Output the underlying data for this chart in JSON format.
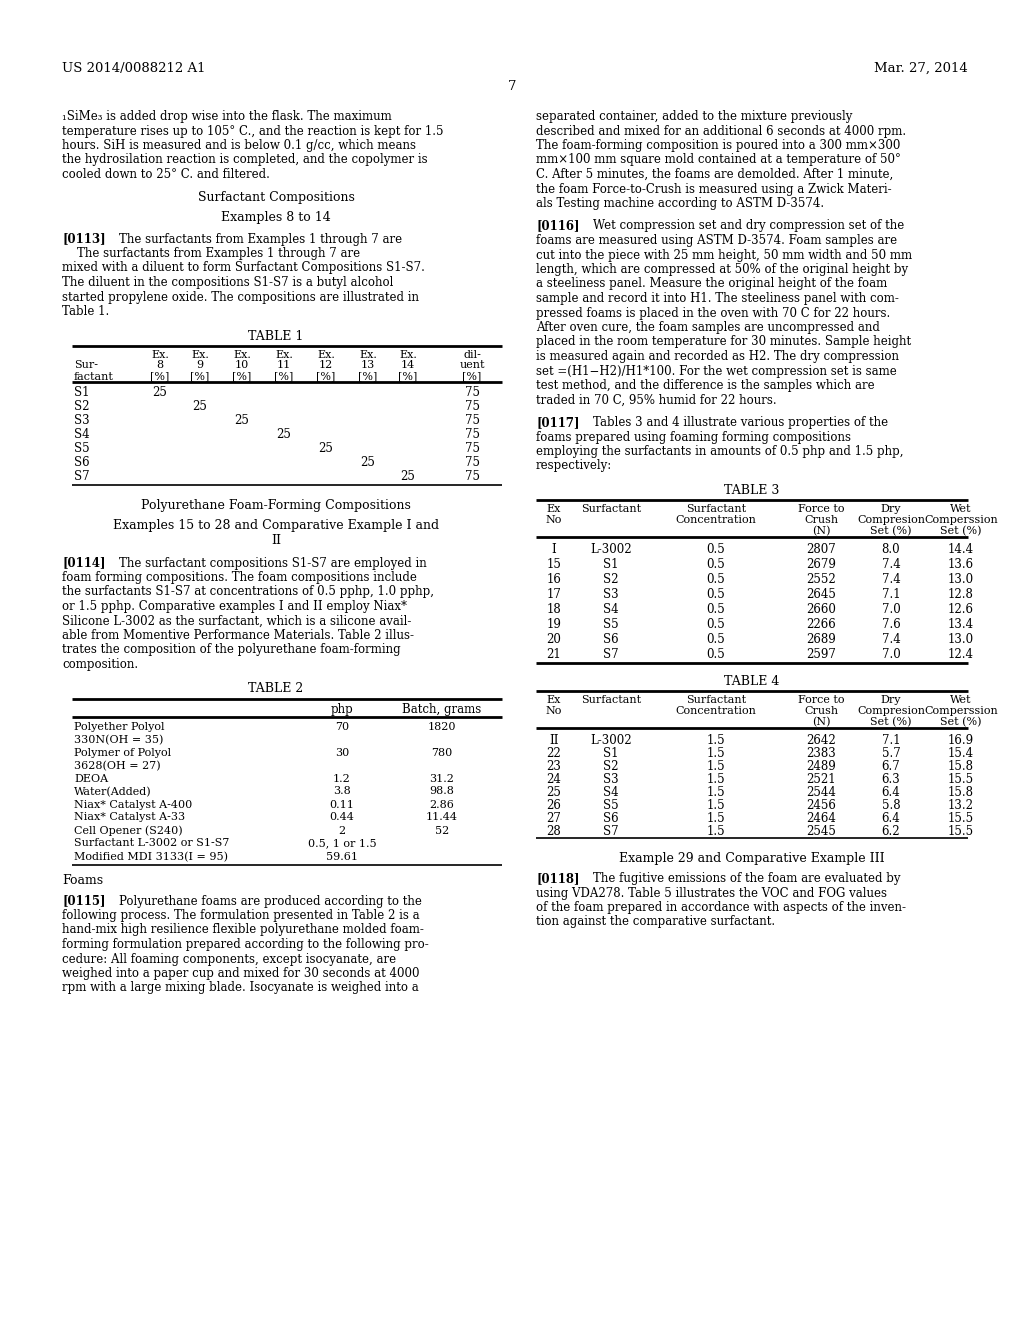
{
  "bg_color": "#ffffff",
  "header_left": "US 2014/0088212 A1",
  "header_right": "Mar. 27, 2014",
  "page_number": "7",
  "table1": {
    "rows": [
      [
        "S1",
        "25",
        "",
        "",
        "",
        "",
        "",
        "",
        "75"
      ],
      [
        "S2",
        "",
        "25",
        "",
        "",
        "",
        "",
        "",
        "75"
      ],
      [
        "S3",
        "",
        "",
        "25",
        "",
        "",
        "",
        "",
        "75"
      ],
      [
        "S4",
        "",
        "",
        "",
        "25",
        "",
        "",
        "",
        "75"
      ],
      [
        "S5",
        "",
        "",
        "",
        "",
        "25",
        "",
        "",
        "75"
      ],
      [
        "S6",
        "",
        "",
        "",
        "",
        "",
        "25",
        "",
        "75"
      ],
      [
        "S7",
        "",
        "",
        "",
        "",
        "",
        "",
        "25",
        "75"
      ]
    ]
  },
  "table2": {
    "rows": [
      [
        "Polyether Polyol",
        "70",
        "1820"
      ],
      [
        "330N(OH = 35)",
        "",
        ""
      ],
      [
        "Polymer of Polyol",
        "30",
        "780"
      ],
      [
        "3628(OH = 27)",
        "",
        ""
      ],
      [
        "DEOA",
        "1.2",
        "31.2"
      ],
      [
        "Water(Added)",
        "3.8",
        "98.8"
      ],
      [
        "Niax* Catalyst A-400",
        "0.11",
        "2.86"
      ],
      [
        "Niax* Catalyst A-33",
        "0.44",
        "11.44"
      ],
      [
        "Cell Opener (S240)",
        "2",
        "52"
      ],
      [
        "Surfactant L-3002 or S1-S7",
        "0.5, 1 or 1.5",
        ""
      ],
      [
        "Modified MDI 3133(I = 95)",
        "59.61",
        ""
      ]
    ]
  },
  "table3": {
    "rows": [
      [
        "I",
        "L-3002",
        "0.5",
        "2807",
        "8.0",
        "14.4"
      ],
      [
        "15",
        "S1",
        "0.5",
        "2679",
        "7.4",
        "13.6"
      ],
      [
        "16",
        "S2",
        "0.5",
        "2552",
        "7.4",
        "13.0"
      ],
      [
        "17",
        "S3",
        "0.5",
        "2645",
        "7.1",
        "12.8"
      ],
      [
        "18",
        "S4",
        "0.5",
        "2660",
        "7.0",
        "12.6"
      ],
      [
        "19",
        "S5",
        "0.5",
        "2266",
        "7.6",
        "13.4"
      ],
      [
        "20",
        "S6",
        "0.5",
        "2689",
        "7.4",
        "13.0"
      ],
      [
        "21",
        "S7",
        "0.5",
        "2597",
        "7.0",
        "12.4"
      ]
    ]
  },
  "table4": {
    "rows": [
      [
        "II",
        "L-3002",
        "1.5",
        "2642",
        "7.1",
        "16.9"
      ],
      [
        "22",
        "S1",
        "1.5",
        "2383",
        "5.7",
        "15.4"
      ],
      [
        "23",
        "S2",
        "1.5",
        "2489",
        "6.7",
        "15.8"
      ],
      [
        "24",
        "S3",
        "1.5",
        "2521",
        "6.3",
        "15.5"
      ],
      [
        "25",
        "S4",
        "1.5",
        "2544",
        "6.4",
        "15.8"
      ],
      [
        "26",
        "S5",
        "1.5",
        "2456",
        "5.8",
        "13.2"
      ],
      [
        "27",
        "S6",
        "1.5",
        "2464",
        "6.4",
        "15.5"
      ],
      [
        "28",
        "S7",
        "1.5",
        "2545",
        "6.2",
        "15.5"
      ]
    ]
  }
}
